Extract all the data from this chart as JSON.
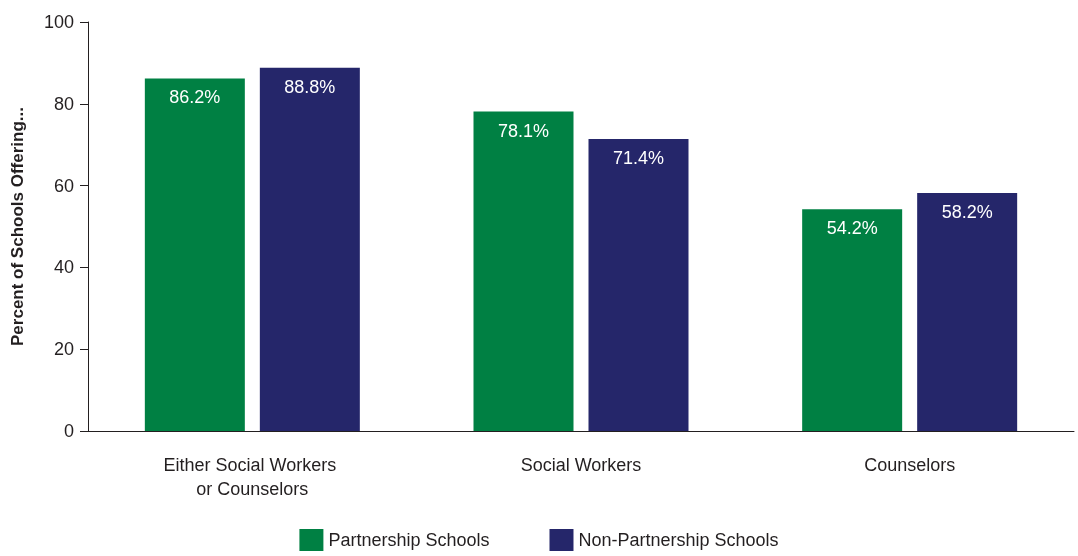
{
  "chart_data": {
    "type": "bar",
    "ylabel": "Percent of Schools Offering...",
    "categories": [
      "Either Social Workers or Counselors",
      "Social Workers",
      "Counselors"
    ],
    "series": [
      {
        "name": "Partnership Schools",
        "color": "#008043",
        "values": [
          86.2,
          78.1,
          54.2
        ],
        "value_labels": [
          "86.2%",
          "78.1%",
          "54.2%"
        ]
      },
      {
        "name": "Non-Partnership Schools",
        "color": "#25266a",
        "values": [
          88.8,
          71.4,
          58.2
        ],
        "value_labels": [
          "88.8%",
          "71.4%",
          "58.2%"
        ]
      }
    ],
    "ylim": [
      0,
      100
    ],
    "yticks": [
      0,
      20,
      40,
      60,
      80,
      100
    ],
    "grid": false,
    "legend": "bottom"
  }
}
